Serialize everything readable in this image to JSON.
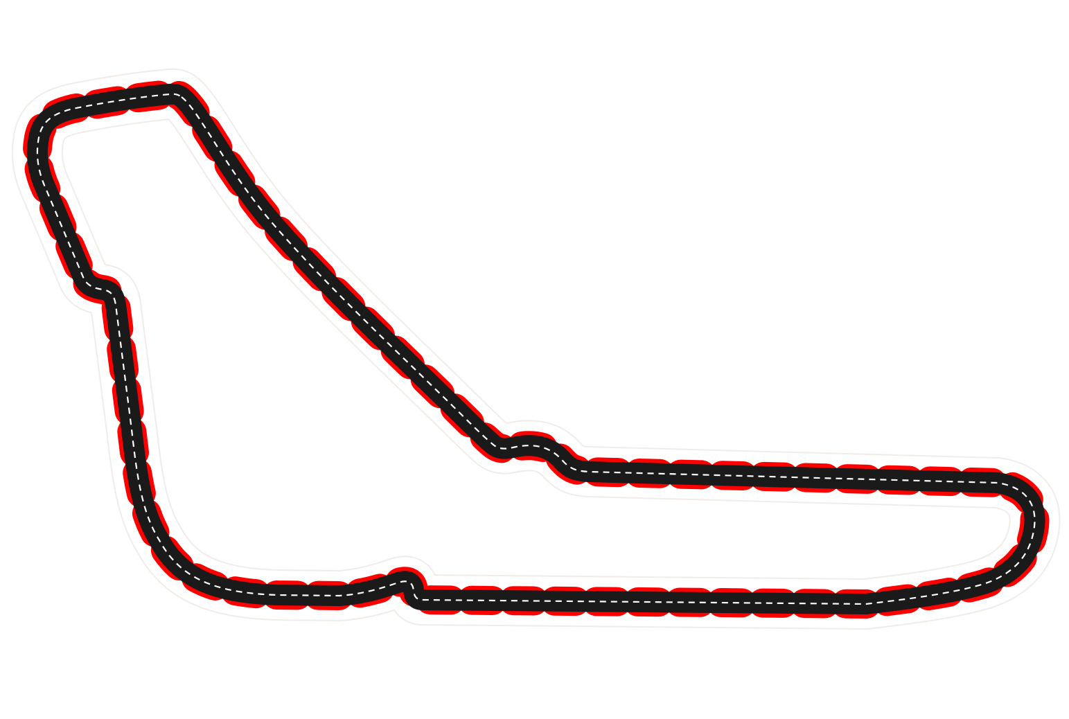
{
  "map": {
    "feature": "race-circuit-layout",
    "track_style": {
      "asphalt_color": "#1a1a1a",
      "kerb_color": "#ff0000",
      "centerline_color": "#ffffff",
      "background_color": "#ffffff"
    },
    "labels": []
  }
}
